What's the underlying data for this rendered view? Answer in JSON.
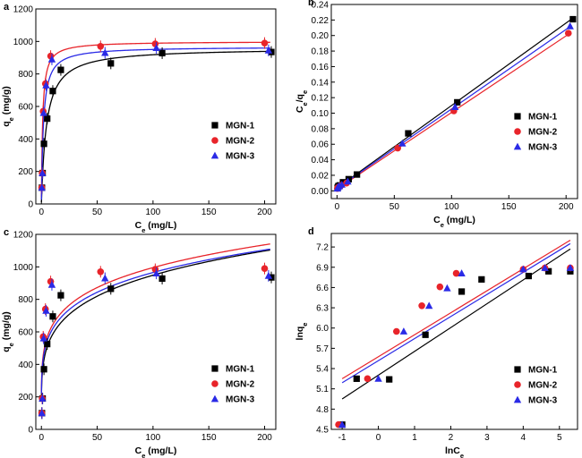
{
  "colors": {
    "MGN-1": "#000000",
    "MGN-2": "#e8242a",
    "MGN-3": "#2a2ae6"
  },
  "chart_data": [
    {
      "panel": "a",
      "type": "scatter",
      "xlabel": "Ce (mg/L)",
      "ylabel": "qe (mg/g)",
      "xlim": [
        -5,
        210
      ],
      "ylim": [
        0,
        1200
      ],
      "xticks": [
        0,
        50,
        100,
        150,
        200
      ],
      "xtick_labels": [
        "0",
        "50",
        "100",
        "150",
        "200"
      ],
      "yticks": [
        0,
        200,
        400,
        600,
        800,
        1000,
        1200
      ],
      "ytick_labels": [
        "0",
        "200",
        "400",
        "600",
        "800",
        "1000",
        "1200"
      ],
      "legend": "right",
      "error_bars": true,
      "series": [
        {
          "name": "MGN-1",
          "marker": "square",
          "x": [
            0.5,
            1.1,
            2.3,
            5.2,
            10.2,
            17.4,
            62.2,
            108.2,
            206.0
          ],
          "y": [
            100,
            190,
            370,
            525,
            695,
            825,
            865,
            928,
            935
          ],
          "fit_curve": {
            "model": "langmuir",
            "qmax": 960,
            "K": 0.22
          }
        },
        {
          "name": "MGN-2",
          "marker": "circle",
          "x": [
            0.3,
            0.7,
            1.6,
            3.6,
            8.3,
            53.0,
            102.0,
            200.0
          ],
          "y": [
            100,
            190,
            570,
            740,
            910,
            970,
            985,
            990
          ],
          "fit_curve": {
            "model": "langmuir",
            "qmax": 1000,
            "K": 0.9
          }
        },
        {
          "name": "MGN-3",
          "marker": "triangle",
          "x": [
            0.4,
            0.9,
            2.0,
            4.2,
            9.4,
            57.0,
            103.0,
            203.5
          ],
          "y": [
            100,
            190,
            560,
            730,
            890,
            930,
            960,
            945
          ],
          "fit_curve": {
            "model": "langmuir",
            "qmax": 968,
            "K": 0.55
          }
        }
      ]
    },
    {
      "panel": "b",
      "type": "scatter",
      "xlabel": "Ce (mg/L)",
      "ylabel": "Ce/qe",
      "xlim": [
        -5,
        210
      ],
      "ylim": [
        -0.01,
        0.24
      ],
      "xticks": [
        0,
        50,
        100,
        150,
        200
      ],
      "xtick_labels": [
        "0",
        "50",
        "100",
        "150",
        "200"
      ],
      "yticks": [
        0,
        0.02,
        0.04,
        0.06,
        0.08,
        0.1,
        0.12,
        0.14,
        0.16,
        0.18,
        0.2,
        0.22,
        0.24
      ],
      "ytick_labels": [
        "0.00",
        "0.02",
        "0.04",
        "0.06",
        "0.08",
        "0.10",
        "0.12",
        "0.14",
        "0.16",
        "0.18",
        "0.20",
        "0.22",
        "0.24"
      ],
      "legend": "right",
      "series": [
        {
          "name": "MGN-1",
          "marker": "square",
          "x": [
            0.5,
            1.1,
            2.3,
            5.2,
            10.2,
            17.4,
            62.2,
            105.0,
            206.0
          ],
          "y": [
            0.004,
            0.006,
            0.007,
            0.011,
            0.015,
            0.021,
            0.074,
            0.114,
            0.221
          ],
          "fit_line": {
            "x": [
              0,
              206
            ],
            "y": [
              0.0036,
              0.2225
            ]
          }
        },
        {
          "name": "MGN-2",
          "marker": "circle",
          "x": [
            0.3,
            0.7,
            1.6,
            3.6,
            8.3,
            53.0,
            102.0,
            202.0
          ],
          "y": [
            0.003,
            0.004,
            0.005,
            0.007,
            0.01,
            0.055,
            0.103,
            0.203
          ],
          "fit_line": {
            "x": [
              0,
              204
            ],
            "y": [
              0.0022,
              0.2035
            ]
          }
        },
        {
          "name": "MGN-3",
          "marker": "triangle",
          "x": [
            0.4,
            0.9,
            2.0,
            4.2,
            9.4,
            57.0,
            103.0,
            203.5
          ],
          "y": [
            0.003,
            0.005,
            0.006,
            0.008,
            0.012,
            0.061,
            0.108,
            0.212
          ],
          "fit_line": {
            "x": [
              0,
              205
            ],
            "y": [
              0.003,
              0.213
            ]
          }
        }
      ]
    },
    {
      "panel": "c",
      "type": "scatter",
      "xlabel": "Ce (mg/L)",
      "ylabel": "qe (mg/g)",
      "xlim": [
        -5,
        210
      ],
      "ylim": [
        0,
        1200
      ],
      "xticks": [
        0,
        50,
        100,
        150,
        200
      ],
      "xtick_labels": [
        "0",
        "50",
        "100",
        "150",
        "200"
      ],
      "yticks": [
        0,
        200,
        400,
        600,
        800,
        1000,
        1200
      ],
      "ytick_labels": [
        "0",
        "200",
        "400",
        "600",
        "800",
        "1000",
        "1200"
      ],
      "legend": "bottom-right",
      "error_bars": true,
      "series": [
        {
          "name": "MGN-1",
          "marker": "square",
          "x": [
            0.5,
            1.1,
            2.3,
            5.2,
            10.2,
            17.4,
            62.2,
            108.2,
            206.0
          ],
          "y": [
            100,
            190,
            370,
            525,
            695,
            825,
            865,
            928,
            935
          ],
          "fit_curve": {
            "model": "freundlich",
            "K": 359,
            "n": 0.211
          }
        },
        {
          "name": "MGN-2",
          "marker": "circle",
          "x": [
            0.3,
            0.7,
            1.6,
            3.6,
            8.3,
            53.0,
            102.0,
            200.0
          ],
          "y": [
            100,
            190,
            570,
            740,
            910,
            970,
            985,
            990
          ],
          "fit_curve": {
            "model": "freundlich",
            "K": 415,
            "n": 0.19
          }
        },
        {
          "name": "MGN-3",
          "marker": "triangle",
          "x": [
            0.4,
            0.9,
            2.0,
            4.2,
            9.4,
            57.0,
            103.0,
            203.5
          ],
          "y": [
            100,
            190,
            560,
            730,
            890,
            930,
            960,
            945
          ],
          "fit_curve": {
            "model": "freundlich",
            "K": 395,
            "n": 0.194
          }
        }
      ]
    },
    {
      "panel": "d",
      "type": "scatter",
      "xlabel": "lnCe",
      "ylabel": "lnqe",
      "xlim": [
        -1.3,
        5.5
      ],
      "ylim": [
        4.5,
        7.4
      ],
      "xticks": [
        -1,
        0,
        1,
        2,
        3,
        4,
        5
      ],
      "xtick_labels": [
        "-1",
        "0",
        "1",
        "2",
        "3",
        "4",
        "5"
      ],
      "yticks": [
        4.5,
        4.8,
        5.1,
        5.4,
        5.7,
        6.0,
        6.3,
        6.6,
        6.9,
        7.2
      ],
      "ytick_labels": [
        "4.5",
        "4.8",
        "5.1",
        "5.4",
        "5.7",
        "6.0",
        "6.3",
        "6.6",
        "6.9",
        "7.2"
      ],
      "legend": "bottom-right",
      "series": [
        {
          "name": "MGN-1",
          "marker": "square",
          "x": [
            -1.0,
            -0.6,
            0.3,
            1.3,
            2.3,
            2.85,
            4.15,
            4.7,
            5.3
          ],
          "y": [
            4.57,
            5.25,
            5.24,
            5.9,
            6.54,
            6.72,
            6.77,
            6.84,
            6.84
          ],
          "fit_line": {
            "x": [
              -1.0,
              5.3
            ],
            "y": [
              4.95,
              7.17
            ]
          }
        },
        {
          "name": "MGN-2",
          "marker": "circle",
          "x": [
            -1.1,
            -0.3,
            0.5,
            1.2,
            1.7,
            2.15,
            4.0,
            4.6,
            5.3
          ],
          "y": [
            4.57,
            5.25,
            5.95,
            6.33,
            6.61,
            6.81,
            6.87,
            6.89,
            6.89
          ],
          "fit_line": {
            "x": [
              -1.0,
              5.3
            ],
            "y": [
              5.25,
              7.3
            ]
          }
        },
        {
          "name": "MGN-3",
          "marker": "triangle",
          "x": [
            -1.0,
            0.0,
            0.7,
            1.4,
            1.9,
            2.3,
            4.0,
            4.6,
            5.3
          ],
          "y": [
            4.57,
            5.25,
            5.95,
            6.33,
            6.59,
            6.81,
            6.87,
            6.89,
            6.89
          ],
          "fit_line": {
            "x": [
              -1.0,
              5.3
            ],
            "y": [
              5.19,
              7.25
            ]
          }
        }
      ]
    }
  ]
}
